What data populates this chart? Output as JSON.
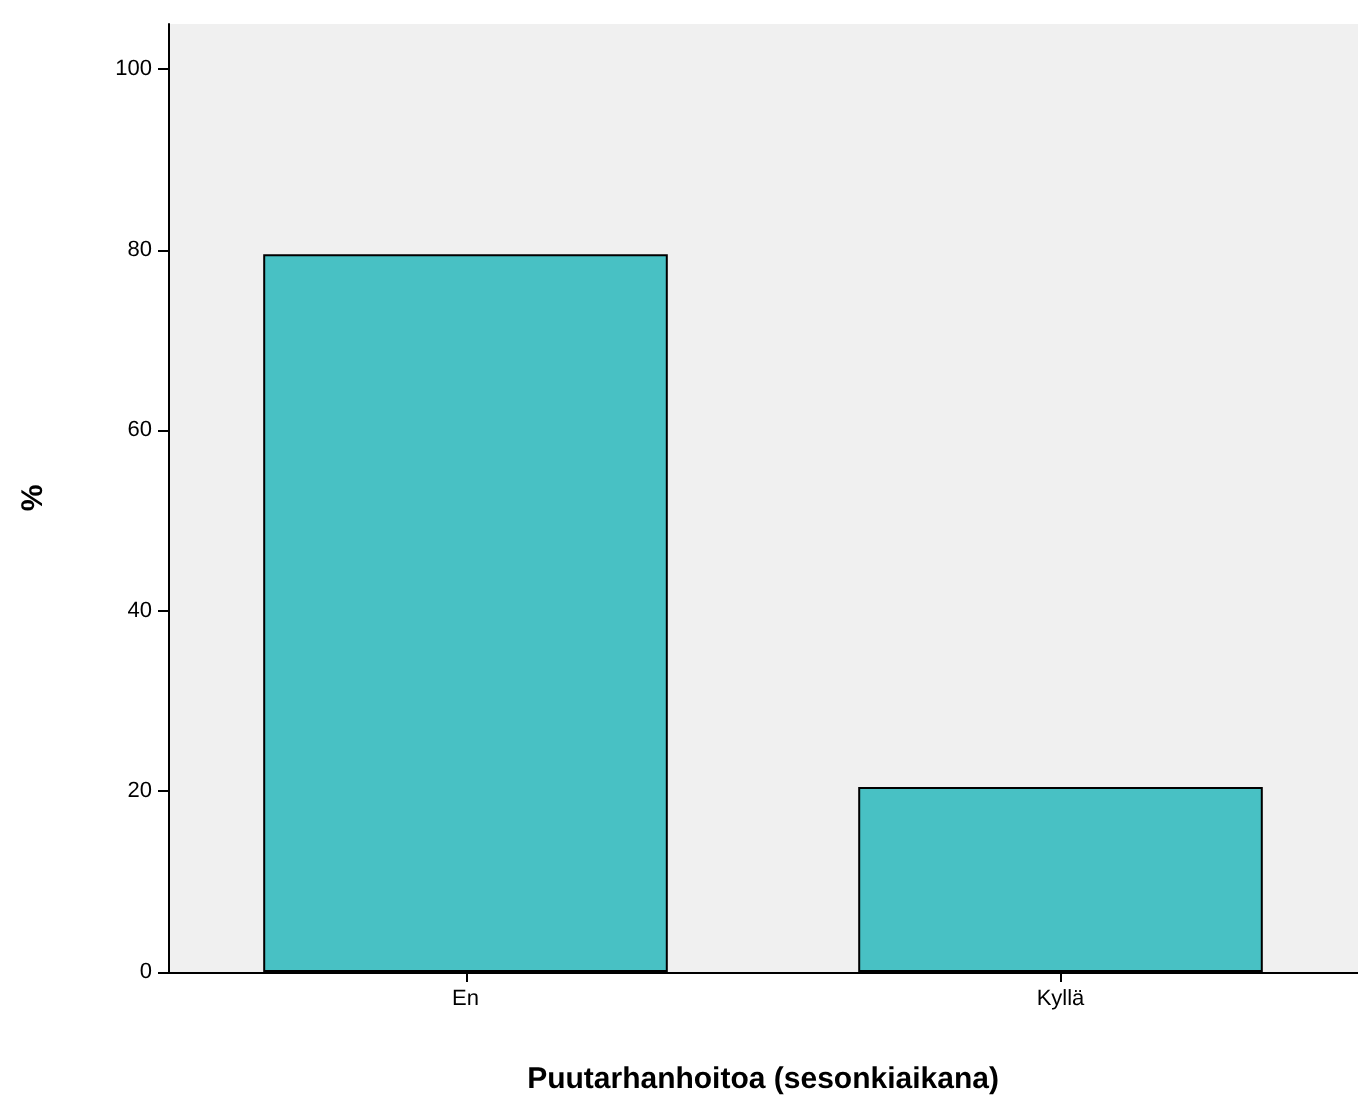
{
  "chart_data": {
    "type": "bar",
    "xlabel": "Puutarhanhoitoa (sesonkiaikana)",
    "ylabel": "%",
    "categories": [
      "En",
      "Kyllä"
    ],
    "values": [
      79.5,
      20.5
    ],
    "color": "#48c1c4",
    "ylim": [
      0,
      105
    ],
    "yticks": [
      0,
      20,
      40,
      60,
      80,
      100
    ]
  }
}
